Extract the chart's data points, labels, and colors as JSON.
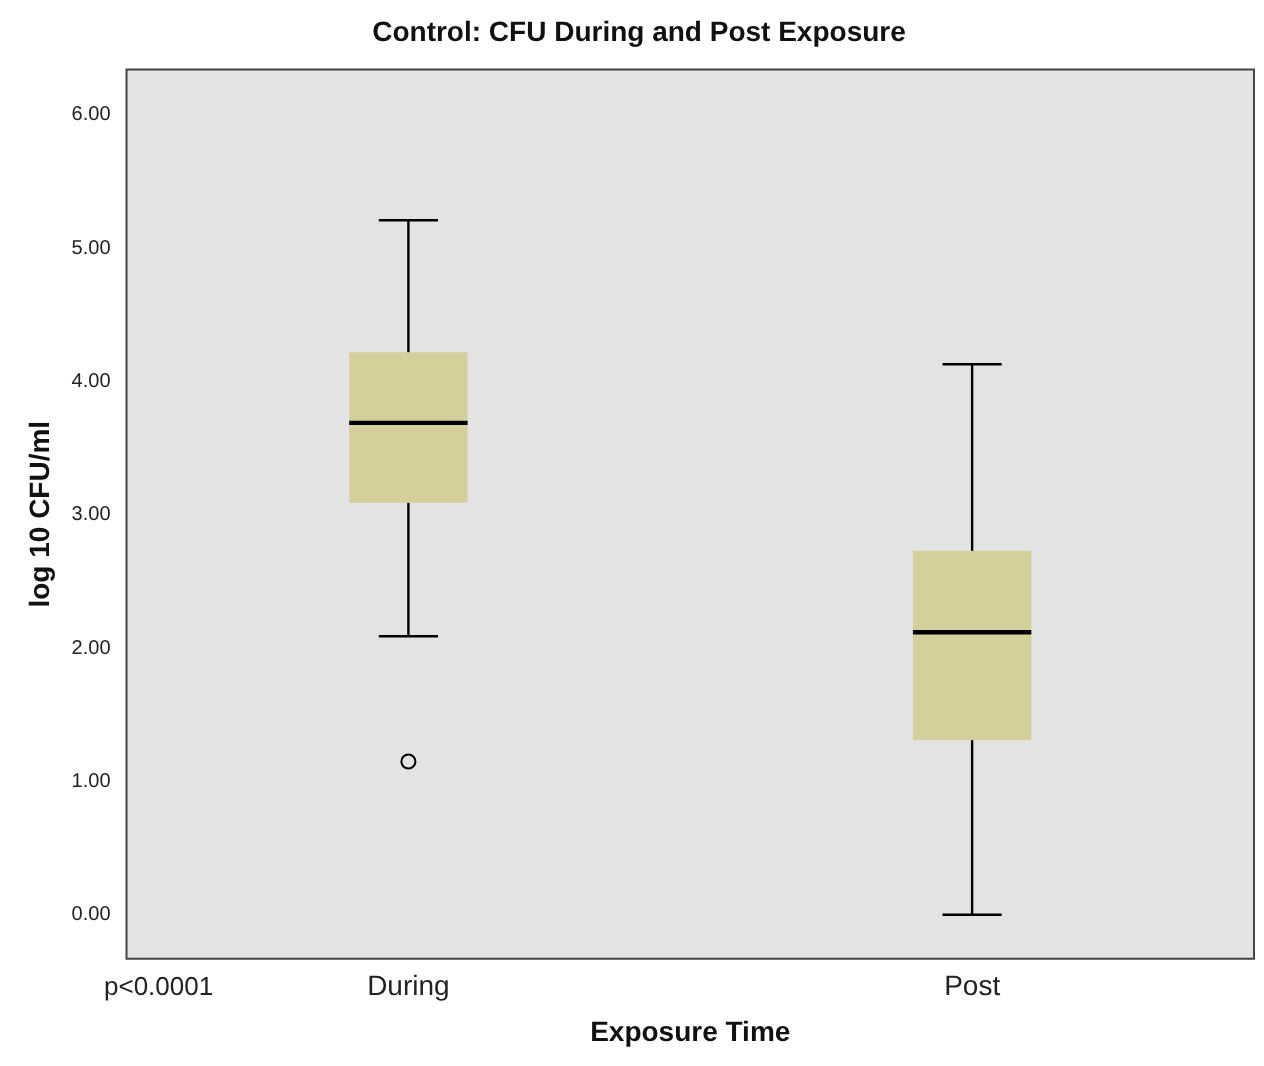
{
  "chart_data": {
    "type": "box",
    "title": "Control: CFU During and Post Exposure",
    "xlabel": "Exposure Time",
    "ylabel": "log 10 CFU/ml",
    "categories": [
      "During",
      "Post"
    ],
    "color": "#d5cf9c",
    "boxes": [
      {
        "low": 2.09,
        "q1": 3.09,
        "median": 3.69,
        "q3": 4.22,
        "high": 5.21,
        "outliers": [
          1.15
        ]
      },
      {
        "low": 0,
        "q1": 1.31,
        "median": 2.12,
        "q3": 2.73,
        "high": 4.13
      }
    ],
    "ylim": [
      -0.33,
      6.34
    ],
    "yticks": [
      {
        "value": 0,
        "label": "0.00"
      },
      {
        "value": 1,
        "label": "1.00"
      },
      {
        "value": 2,
        "label": "2.00"
      },
      {
        "value": 3,
        "label": "3.00"
      },
      {
        "value": 4,
        "label": "4.00"
      },
      {
        "value": 5,
        "label": "5.00"
      },
      {
        "value": 6,
        "label": "6.00"
      }
    ],
    "grid": false,
    "legend": false,
    "annotations": [
      "p<0.0001"
    ]
  }
}
